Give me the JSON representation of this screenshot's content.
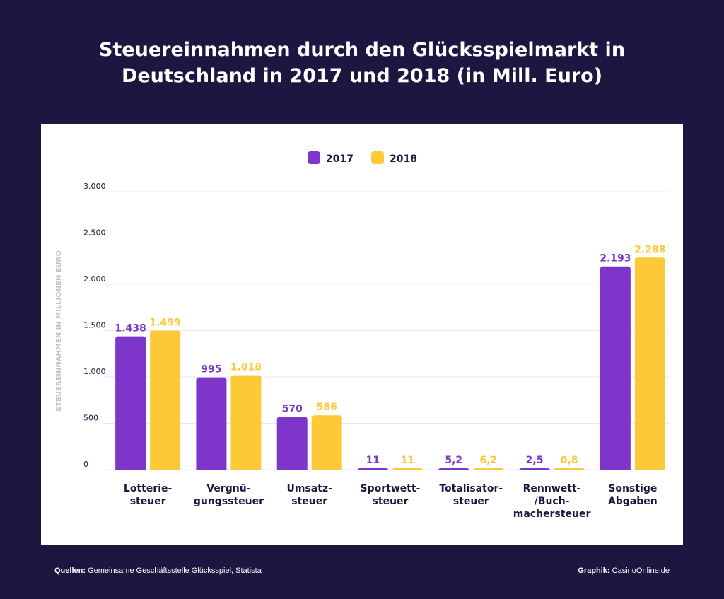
{
  "title_line1": "Steuereinnahmen durch den Glücksspielmarkt in",
  "title_line2": "Deutschland in 2017 und 2018 (in Mill. Euro)",
  "footer": {
    "sources_label": "Quellen:",
    "sources_text": "Gemeinsame Geschäftsstelle Glücksspiel, Statista",
    "graphic_label": "Graphik:",
    "graphic_text": "CasinoOnline.de"
  },
  "chart_data": {
    "type": "bar",
    "title": "Steuereinnahmen durch den Glücksspielmarkt in Deutschland in 2017 und 2018 (in Mill. Euro)",
    "ylabel": "STEUEREINNAHMEN IN MILLIONEN EURO",
    "xlabel": "",
    "ylim": [
      0,
      3000
    ],
    "yticks": [
      0,
      500,
      1000,
      1500,
      2000,
      2500,
      3000
    ],
    "ytick_labels": [
      "0",
      "500",
      "1.000",
      "1.500",
      "2.000",
      "2.500",
      "3.000"
    ],
    "grid": true,
    "legend_position": "top-center",
    "categories": [
      [
        "Lotterie-",
        "steuer"
      ],
      [
        "Vergnü-",
        "gungssteuer"
      ],
      [
        "Umsatz-",
        "steuer"
      ],
      [
        "Sportwett-",
        "steuer"
      ],
      [
        "Totalisator-",
        "steuer"
      ],
      [
        "Rennwett-",
        "/Buch-",
        "machersteuer"
      ],
      [
        "Sonstige",
        "Abgaben"
      ]
    ],
    "series": [
      {
        "name": "2017",
        "color": "#7e35c9",
        "values": [
          1438,
          995,
          570,
          11,
          5.2,
          2.5,
          2193
        ],
        "labels": [
          "1.438",
          "995",
          "570",
          "11",
          "5,2",
          "2,5",
          "2.193"
        ]
      },
      {
        "name": "2018",
        "color": "#fec937",
        "values": [
          1499,
          1018,
          586,
          11,
          6.2,
          0.8,
          2288
        ],
        "labels": [
          "1.499",
          "1.018",
          "586",
          "11",
          "6,2",
          "0,8",
          "2.288"
        ]
      }
    ]
  }
}
